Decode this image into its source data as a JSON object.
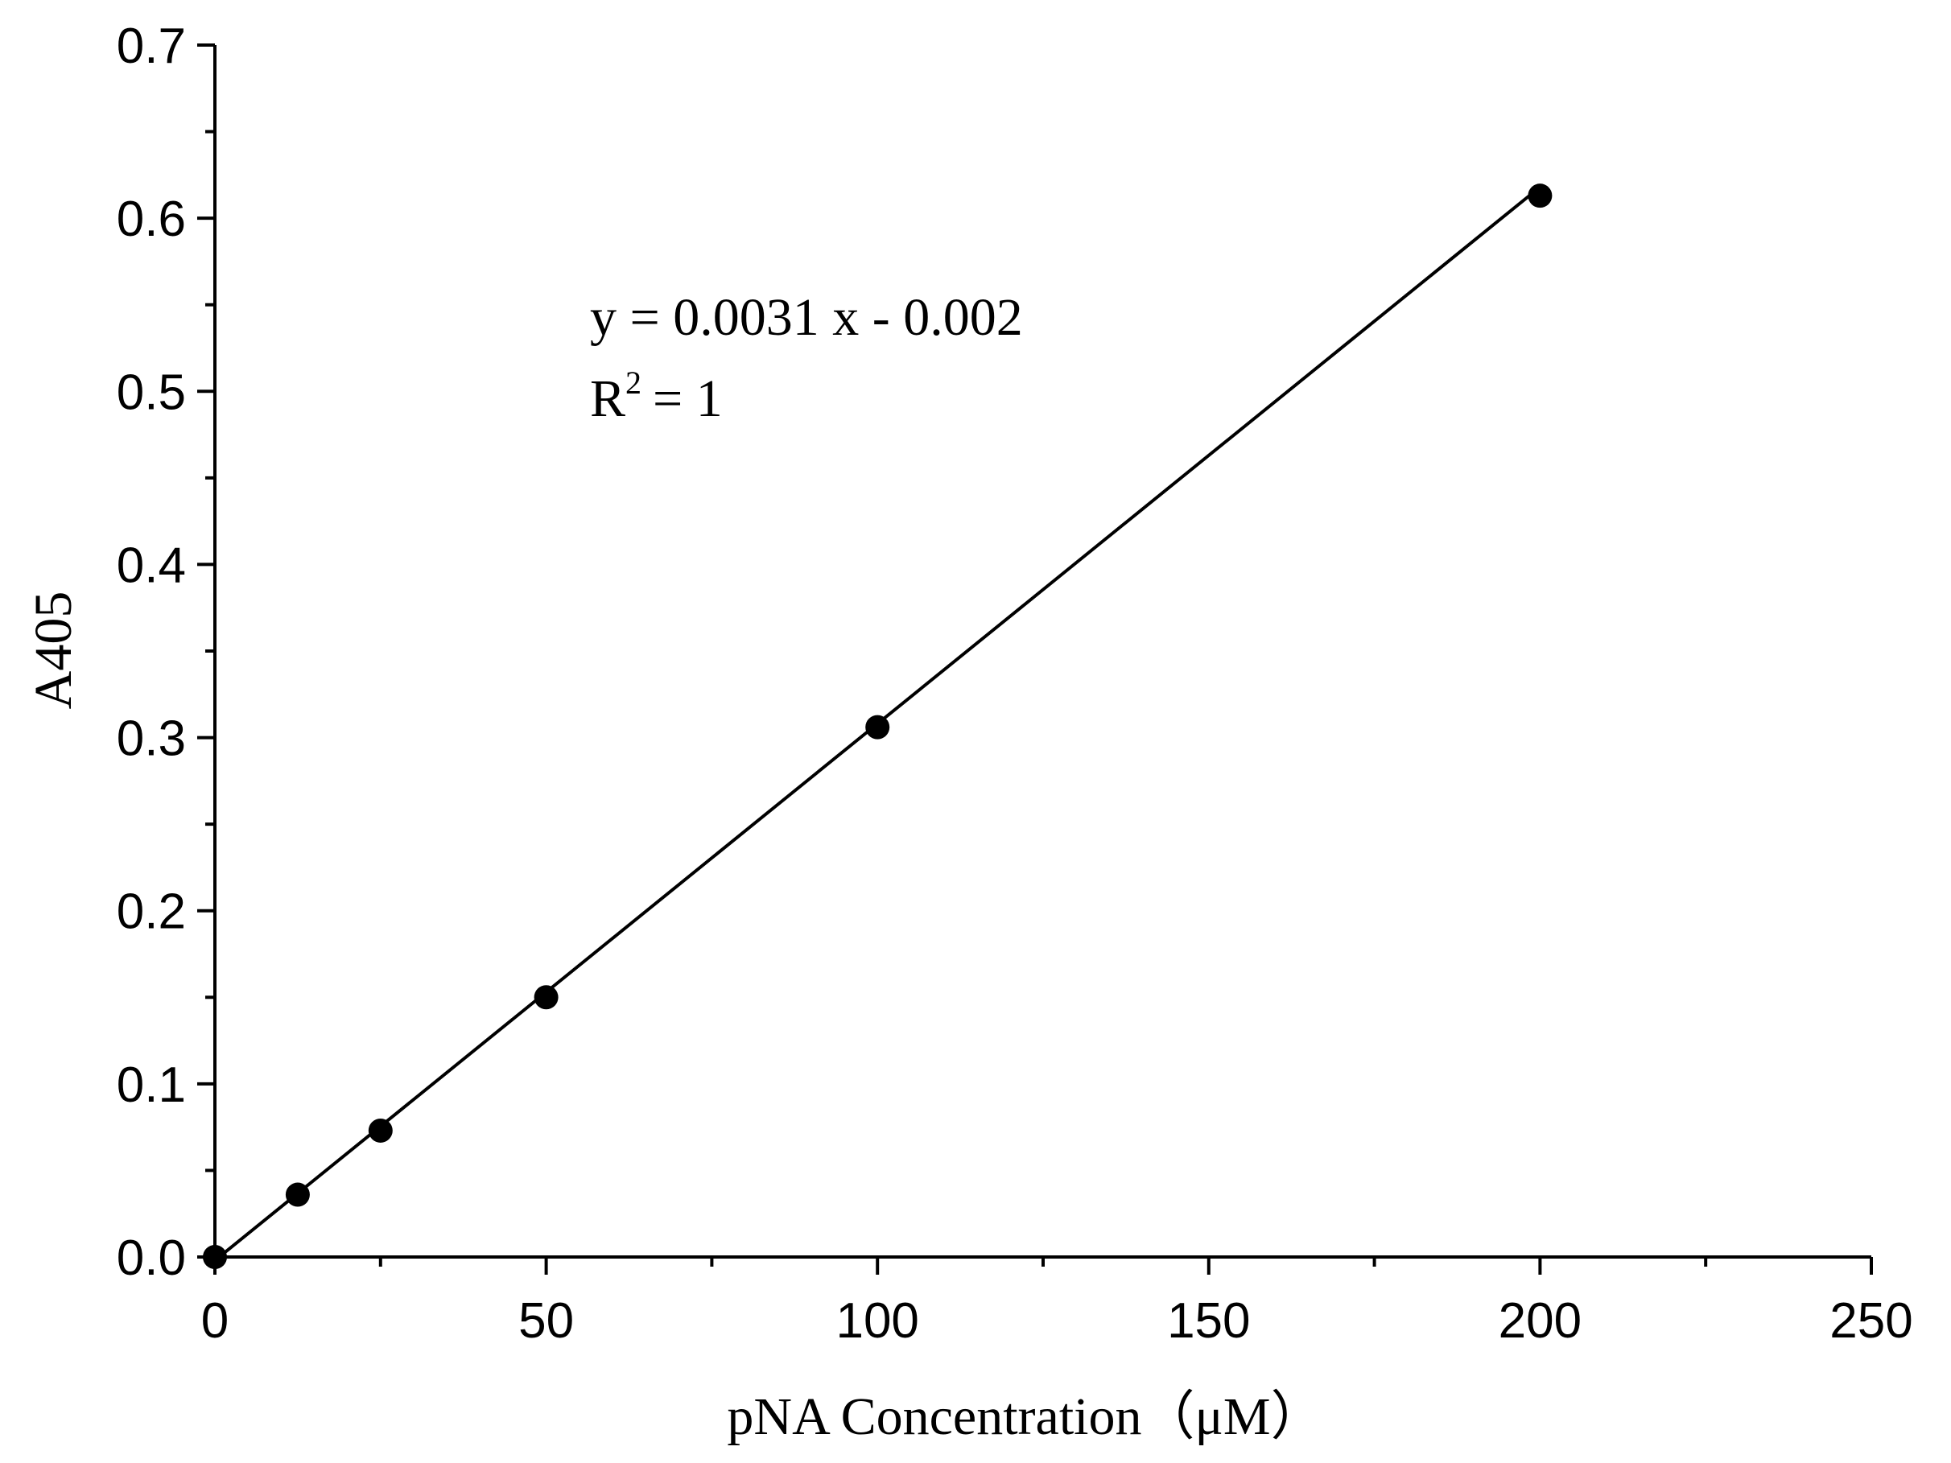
{
  "chart_data": {
    "type": "scatter",
    "x_label": "pNA Concentration（μM）",
    "y_label": "A405",
    "annotations": {
      "equation": "y = 0.0031 x - 0.002",
      "r2_base": "R",
      "r2_sup": "2",
      "r2_tail": "= 1"
    },
    "series": [
      {
        "mode": "markers",
        "color": "#000000",
        "x": [
          0,
          12.5,
          25,
          50,
          100,
          200
        ],
        "values": [
          0,
          0.036,
          0.073,
          0.15,
          0.306,
          0.613
        ]
      },
      {
        "mode": "line",
        "color": "#000000",
        "x": [
          0,
          200
        ],
        "values": [
          -0.002,
          0.618
        ]
      }
    ],
    "xlim": [
      0,
      250
    ],
    "xticks": [
      0,
      50,
      100,
      150,
      200,
      250
    ],
    "xminor": [
      25,
      75,
      125,
      175,
      225
    ],
    "ylim": [
      0,
      0.7
    ],
    "yticks": [
      {
        "value": 0,
        "label": "0.0"
      },
      0.1,
      0.2,
      0.3,
      0.4,
      0.5,
      0.6,
      0.7
    ],
    "yminor": [
      0.05,
      0.15,
      0.25,
      0.35,
      0.45,
      0.55,
      0.65
    ]
  }
}
